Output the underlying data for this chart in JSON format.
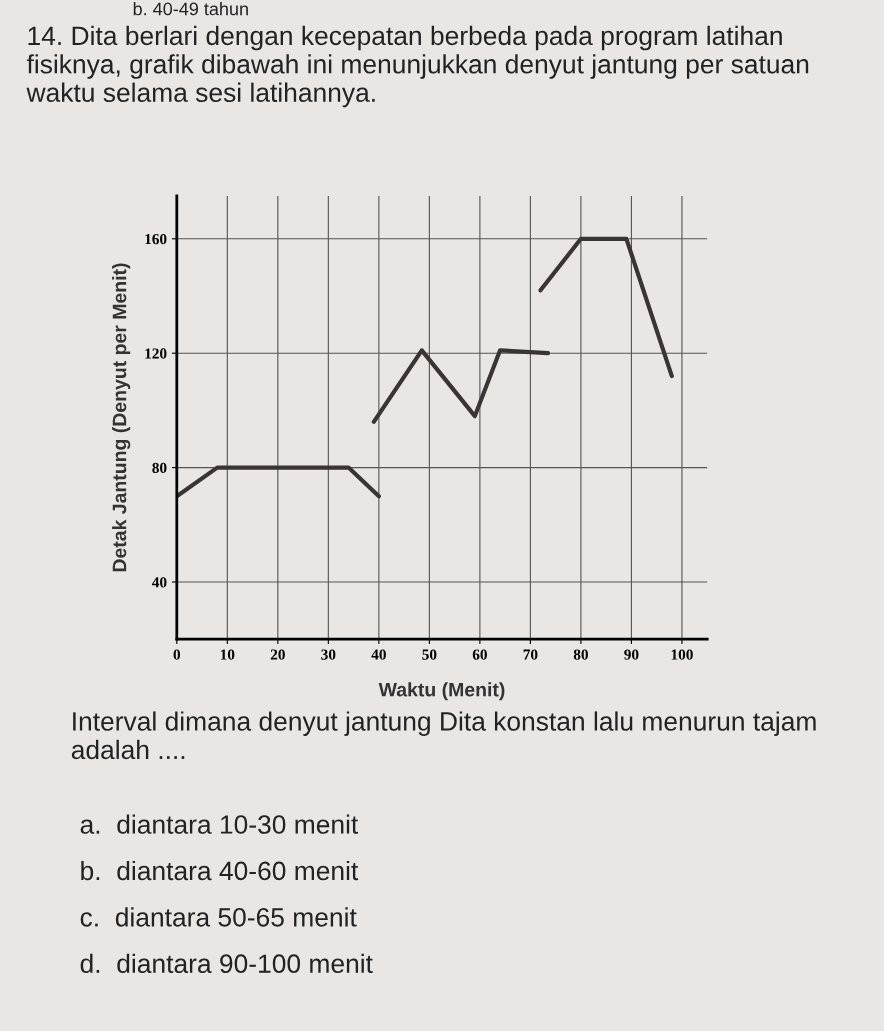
{
  "chart_data": {
    "type": "line",
    "title": "14. Dita berlari dengan kecepatan berbeda pada program latihan fisiknya, grafik dibawah ini menunjukkan denyut jantung per satuan waktu selama sesi latihannya.",
    "xlabel": "Waktu (Menit)",
    "ylabel": "Detak Jantung (Denyut per Menit)",
    "series": [
      {
        "color": "#3a3434",
        "x": [
          0,
          8,
          34,
          40
        ],
        "values": [
          70,
          80,
          80,
          70
        ]
      },
      {
        "color": "#3a3434",
        "x": [
          39,
          48.5,
          59,
          64,
          73.5
        ],
        "values": [
          96,
          121,
          98,
          121,
          120
        ]
      },
      {
        "color": "#3a3434",
        "x": [
          72,
          80,
          89,
          98
        ],
        "values": [
          142,
          160,
          160,
          112
        ]
      }
    ],
    "xlim": [
      0,
      105
    ],
    "ylim": [
      20,
      175
    ],
    "xticks": [
      0,
      10,
      20,
      30,
      40,
      50,
      60,
      70,
      80,
      90,
      100
    ],
    "yticks": [
      40,
      80,
      120,
      160
    ],
    "grid": true,
    "legend": false,
    "marker": "none",
    "line_style": "solid",
    "annotations": [
      "b. 40-49 tahun",
      "Interval dimana denyut jantung Dita konstan lalu menurun tajam adalah ....",
      "a.  diantara 10-30 menit",
      "b.  diantara 40-60 menit",
      "c.  diantara 50-65 menit",
      "d.  diantara 90-100 menit"
    ]
  }
}
